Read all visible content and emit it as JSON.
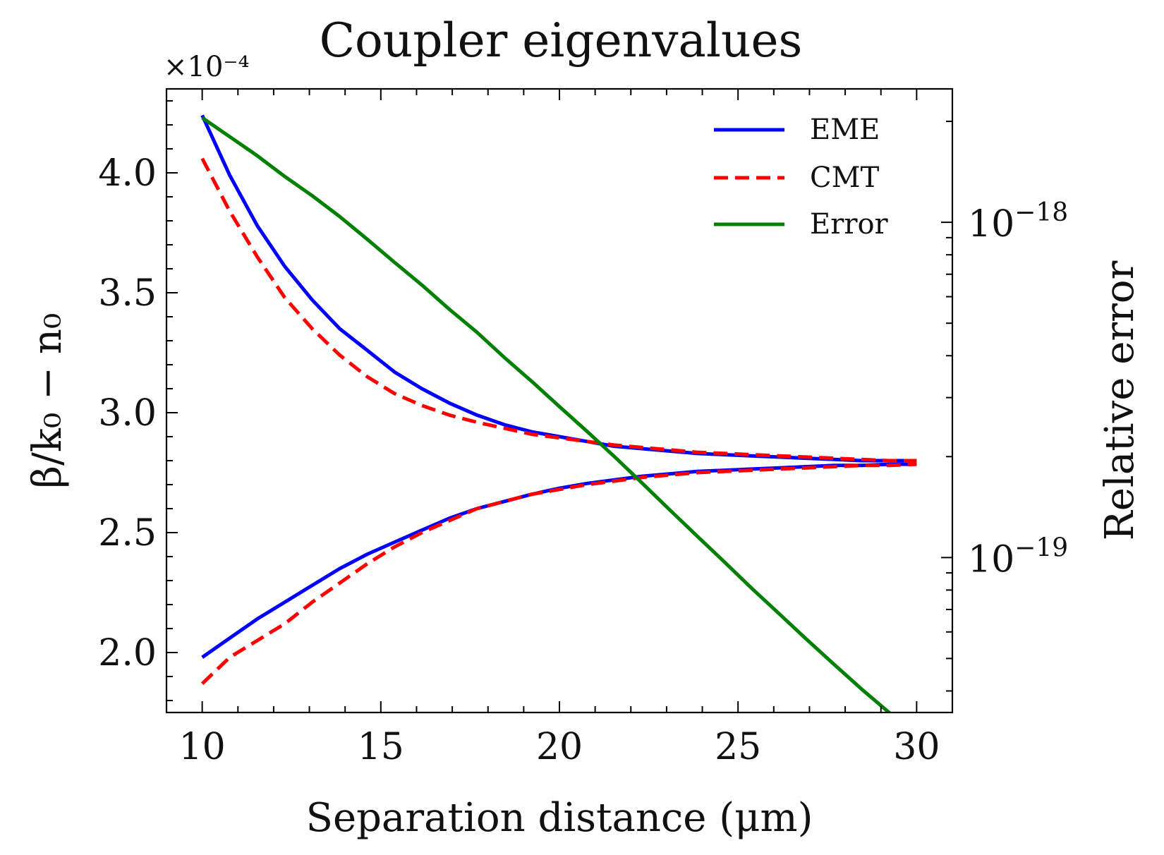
{
  "chart_data": {
    "type": "line",
    "title": "Coupler eigenvalues",
    "xlabel": "Separation distance (μm)",
    "ylabel_left": "β/k₀ − n₀",
    "ylabel_right": "Relative error",
    "left_axis_multiplier": "×10⁻⁴",
    "xlim": [
      9,
      31
    ],
    "ylim_left": [
      1.75,
      4.35
    ],
    "ylim_right": [
      3.45e-20,
      2.5e-18
    ],
    "right_axis_scale": "log",
    "x_ticks": [
      10,
      15,
      20,
      25,
      30
    ],
    "x_tick_labels": [
      "10",
      "15",
      "20",
      "25",
      "30"
    ],
    "y_left_ticks": [
      2.0,
      2.5,
      3.0,
      3.5,
      4.0
    ],
    "y_left_tick_labels": [
      "2.0",
      "2.5",
      "3.0",
      "3.5",
      "4.0"
    ],
    "y_right_ticks": [
      1e-19,
      1e-18
    ],
    "y_right_tick_labels": [
      {
        "base": "10",
        "exp": "−19"
      },
      {
        "base": "10",
        "exp": "−18"
      }
    ],
    "grid": false,
    "legend_position": "top-right",
    "x": [
      10,
      10.77,
      11.54,
      12.31,
      13.08,
      13.85,
      14.62,
      15.38,
      16.15,
      16.92,
      17.69,
      18.46,
      19.23,
      20,
      20.77,
      21.54,
      22.31,
      23.08,
      23.85,
      24.62,
      25.38,
      26.15,
      26.92,
      27.69,
      28.46,
      29.23,
      30
    ],
    "series": [
      {
        "name": "EME",
        "axis": "left",
        "color": "#0000ff",
        "style": "solid",
        "branches": [
          [
            4.24,
            3.99,
            3.78,
            3.61,
            3.47,
            3.35,
            3.26,
            3.17,
            3.1,
            3.04,
            2.99,
            2.95,
            2.92,
            2.9,
            2.88,
            2.86,
            2.85,
            2.84,
            2.83,
            2.825,
            2.82,
            2.815,
            2.81,
            2.805,
            2.8,
            2.8,
            2.8
          ],
          [
            1.98,
            2.06,
            2.14,
            2.21,
            2.28,
            2.35,
            2.41,
            2.46,
            2.51,
            2.56,
            2.6,
            2.63,
            2.66,
            2.685,
            2.705,
            2.72,
            2.735,
            2.745,
            2.755,
            2.76,
            2.765,
            2.77,
            2.775,
            2.78,
            2.78,
            2.785,
            2.785
          ]
        ]
      },
      {
        "name": "CMT",
        "axis": "left",
        "color": "#ff0000",
        "style": "dashed",
        "branches": [
          [
            4.06,
            3.84,
            3.65,
            3.48,
            3.35,
            3.24,
            3.15,
            3.08,
            3.03,
            2.99,
            2.96,
            2.935,
            2.91,
            2.895,
            2.88,
            2.865,
            2.855,
            2.845,
            2.835,
            2.83,
            2.825,
            2.82,
            2.815,
            2.81,
            2.805,
            2.8,
            2.8
          ],
          [
            1.87,
            1.98,
            2.05,
            2.12,
            2.21,
            2.29,
            2.37,
            2.44,
            2.5,
            2.55,
            2.6,
            2.63,
            2.66,
            2.68,
            2.7,
            2.715,
            2.73,
            2.74,
            2.75,
            2.755,
            2.76,
            2.765,
            2.77,
            2.775,
            2.78,
            2.78,
            2.785
          ]
        ]
      },
      {
        "name": "Error",
        "axis": "right",
        "color": "#008000",
        "style": "solid",
        "values": [
          2.05e-18,
          1.8e-18,
          1.58e-18,
          1.37e-18,
          1.2e-18,
          1.04e-18,
          8.9e-19,
          7.6e-19,
          6.5e-19,
          5.5e-19,
          4.7e-19,
          3.95e-19,
          3.35e-19,
          2.82e-19,
          2.38e-19,
          2e-19,
          1.67e-19,
          1.39e-19,
          1.16e-19,
          9.7e-20,
          8.1e-20,
          6.8e-20,
          5.7e-20,
          4.8e-20,
          4.05e-20,
          3.45e-20,
          2.9e-20
        ]
      }
    ],
    "legend": [
      "EME",
      "CMT",
      "Error"
    ]
  }
}
